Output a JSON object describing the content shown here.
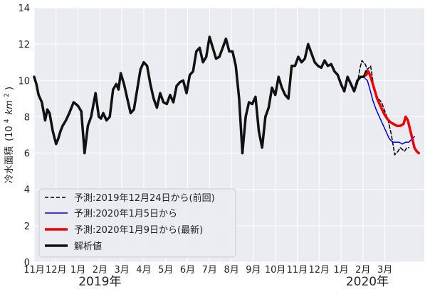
{
  "chart_data": {
    "type": "line",
    "ylabel_text": "冷水面積",
    "ylabel_unit_text": "(10",
    "ylabel_unit_exp": "4",
    "ylabel_unit_km": "km",
    "ylabel_unit_exp2": "2",
    "ylabel_unit_close": ")",
    "ylim": [
      0,
      14
    ],
    "yticks": [
      "0",
      "2",
      "4",
      "6",
      "8",
      "10",
      "12",
      "14"
    ],
    "month_labels": [
      "11月",
      "12月",
      "1月",
      "2月",
      "3月",
      "4月",
      "5月",
      "6月",
      "7月",
      "8月",
      "9月",
      "10月",
      "11月",
      "12月",
      "1月",
      "2月",
      "3月"
    ],
    "year_labels": [
      "2019年",
      "2020年"
    ],
    "grid": true,
    "legend_position": "lower-left",
    "series": [
      {
        "name": "予測:2019年12月24日から(前回)",
        "color": "#000000",
        "style": "dashed",
        "x": [
          14.75,
          14.85,
          14.95,
          15.1,
          15.2,
          15.35,
          15.45,
          15.55,
          15.7,
          15.85,
          16.0,
          16.15,
          16.3,
          16.45,
          16.6,
          16.7,
          16.8,
          16.9,
          17.0,
          17.1
        ],
        "y": [
          9.8,
          10.6,
          11.1,
          10.9,
          10.6,
          10.8,
          10.0,
          9.4,
          9.0,
          8.8,
          8.3,
          7.8,
          7.0,
          5.9,
          6.1,
          6.3,
          6.2,
          6.1,
          6.3,
          6.3
        ]
      },
      {
        "name": "予測:2020年1月5日から",
        "color": "#0000dd",
        "style": "solid",
        "x": [
          15.1,
          15.2,
          15.3,
          15.45,
          15.6,
          15.75,
          15.9,
          16.05,
          16.2,
          16.35,
          16.5,
          16.65,
          16.8,
          16.95,
          17.1,
          17.25,
          17.35
        ],
        "y": [
          10.1,
          10.0,
          9.6,
          8.9,
          8.4,
          8.0,
          7.6,
          7.2,
          6.8,
          6.6,
          6.6,
          6.6,
          6.5,
          6.6,
          6.6,
          6.8,
          6.9
        ]
      },
      {
        "name": "予測:2020年1月9日から(最新)",
        "color": "#ee0000",
        "style": "solid",
        "x": [
          15.15,
          15.25,
          15.35,
          15.5,
          15.65,
          15.8,
          15.95,
          16.1,
          16.25,
          16.4,
          16.55,
          16.7,
          16.85,
          16.95,
          17.05,
          17.15,
          17.25,
          17.35,
          17.45,
          17.55
        ],
        "y": [
          10.3,
          10.5,
          10.2,
          9.6,
          9.0,
          8.6,
          8.2,
          7.9,
          7.7,
          7.6,
          7.5,
          7.5,
          7.6,
          8.0,
          7.8,
          7.3,
          6.8,
          6.3,
          6.1,
          6.0
        ]
      },
      {
        "name": "解析値",
        "color": "#111111",
        "style": "solid-thick",
        "x": [
          0.0,
          0.1,
          0.2,
          0.35,
          0.5,
          0.6,
          0.7,
          0.85,
          1.0,
          1.1,
          1.2,
          1.3,
          1.45,
          1.6,
          1.8,
          2.0,
          2.15,
          2.3,
          2.45,
          2.6,
          2.8,
          2.95,
          3.05,
          3.15,
          3.3,
          3.45,
          3.6,
          3.75,
          3.85,
          3.95,
          4.1,
          4.25,
          4.4,
          4.55,
          4.7,
          4.85,
          5.0,
          5.15,
          5.3,
          5.45,
          5.6,
          5.75,
          5.9,
          6.05,
          6.2,
          6.35,
          6.5,
          6.65,
          6.8,
          6.95,
          7.1,
          7.25,
          7.4,
          7.55,
          7.7,
          7.85,
          8.0,
          8.15,
          8.3,
          8.45,
          8.6,
          8.75,
          8.9,
          9.05,
          9.2,
          9.35,
          9.5,
          9.65,
          9.8,
          9.95,
          10.1,
          10.25,
          10.4,
          10.55,
          10.7,
          10.85,
          11.0,
          11.15,
          11.3,
          11.45,
          11.6,
          11.75,
          11.9,
          12.05,
          12.2,
          12.35,
          12.5,
          12.65,
          12.8,
          12.95,
          13.1,
          13.25,
          13.4,
          13.55,
          13.7,
          13.85,
          14.0,
          14.15,
          14.3,
          14.45,
          14.6,
          14.75,
          14.9,
          15.05,
          15.15
        ],
        "y": [
          10.2,
          9.8,
          9.2,
          8.8,
          7.8,
          8.4,
          8.2,
          7.2,
          6.5,
          6.8,
          7.2,
          7.5,
          7.8,
          8.2,
          8.8,
          8.6,
          8.3,
          6.0,
          7.5,
          8.0,
          9.3,
          8.0,
          7.9,
          8.2,
          7.8,
          8.0,
          9.5,
          9.8,
          9.5,
          10.4,
          9.8,
          9.0,
          8.2,
          8.4,
          9.5,
          10.6,
          11.0,
          10.8,
          9.8,
          9.0,
          8.5,
          9.3,
          8.8,
          8.7,
          9.2,
          8.8,
          9.7,
          9.9,
          10.0,
          9.3,
          10.3,
          10.5,
          11.6,
          11.8,
          11.0,
          11.3,
          12.4,
          11.8,
          11.2,
          11.3,
          11.8,
          12.3,
          11.6,
          11.6,
          10.8,
          9.0,
          6.0,
          8.0,
          8.8,
          8.7,
          9.1,
          7.2,
          6.3,
          8.0,
          8.5,
          9.6,
          9.2,
          10.2,
          9.6,
          9.2,
          9.0,
          10.8,
          10.8,
          11.3,
          11.0,
          11.2,
          12.0,
          11.5,
          11.0,
          10.8,
          10.7,
          11.1,
          10.8,
          10.9,
          10.5,
          10.3,
          9.8,
          9.4,
          10.2,
          9.8,
          9.4,
          10.0,
          10.2,
          10.2,
          10.5
        ]
      }
    ]
  }
}
